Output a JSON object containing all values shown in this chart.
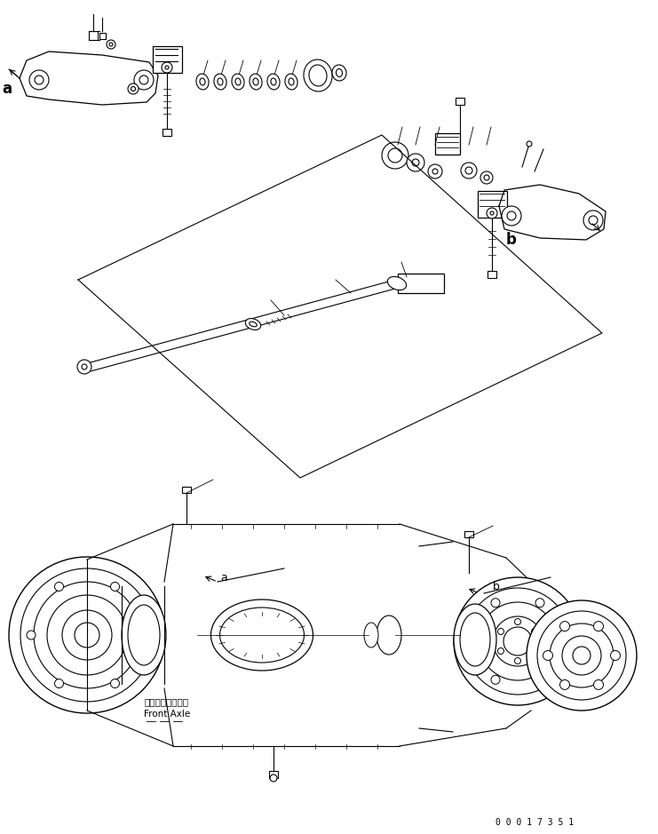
{
  "title": "",
  "bg_color": "#ffffff",
  "line_color": "#000000",
  "fig_width": 7.41,
  "fig_height": 9.39,
  "dpi": 100,
  "part_number": "0 0 0 1 7 3 5 1",
  "label_a": "a",
  "label_b": "b",
  "front_axle_jp": "フロントアクスル",
  "front_axle_en": "Front Axle"
}
